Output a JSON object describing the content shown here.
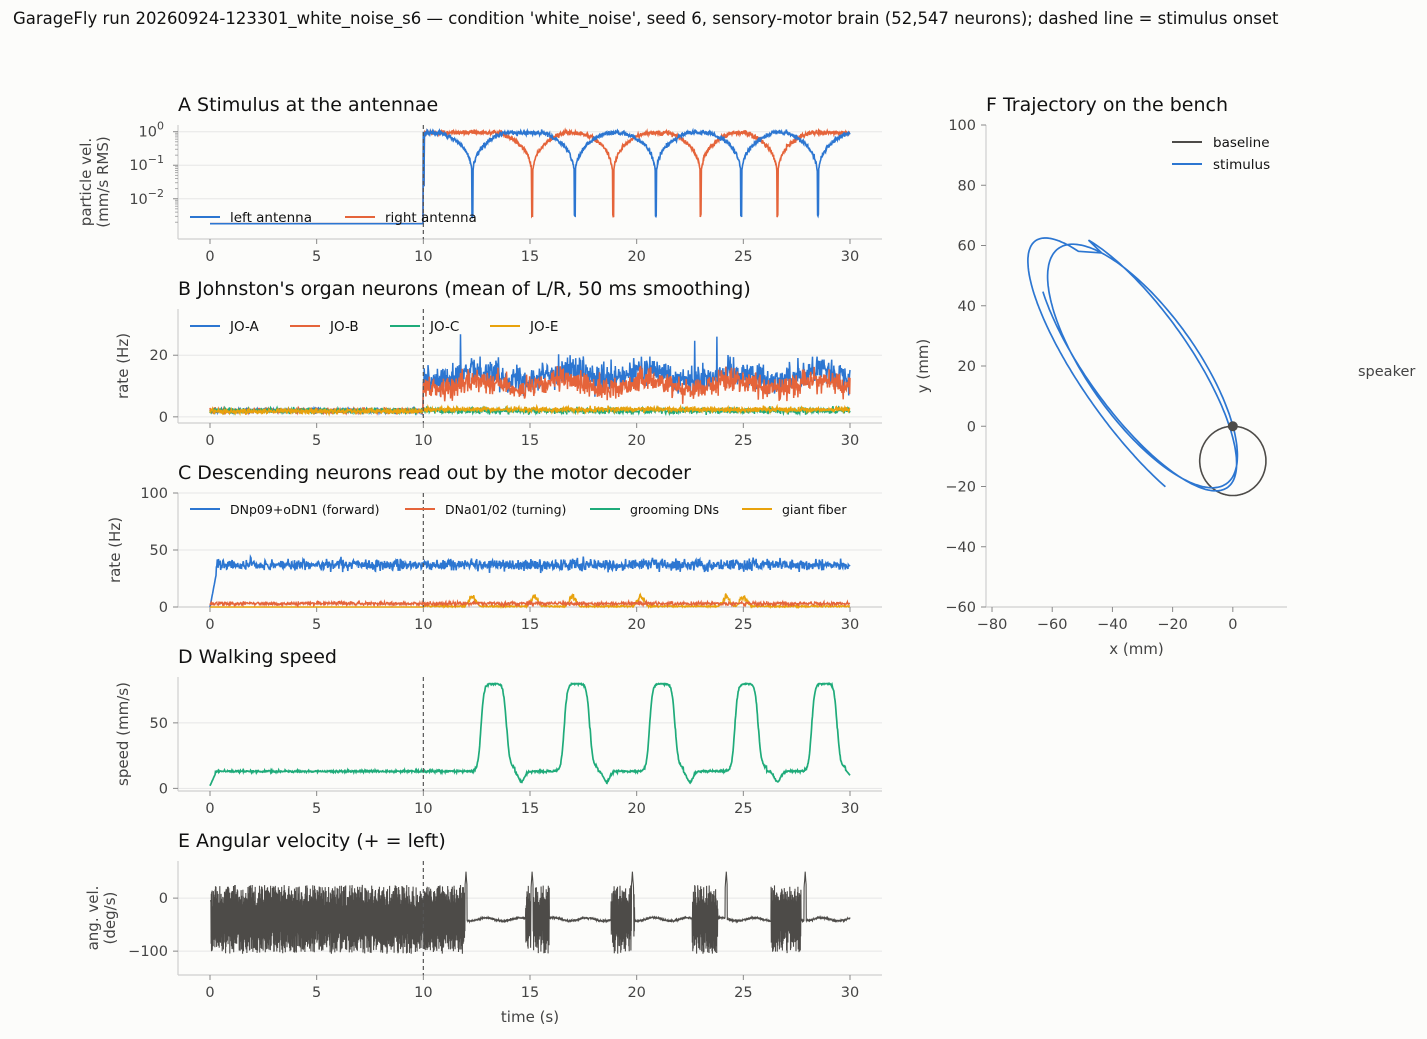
{
  "figure_title": "GarageFly run 20260924-123301_white_noise_s6 — condition 'white_noise', seed 6, sensory-motor brain (52,547 neurons); dashed line = stimulus onset",
  "colors": {
    "blue": "#2c76d1",
    "orange": "#e5643a",
    "green": "#1fab7a",
    "gold": "#e8a20c",
    "gray": "#4d4b48",
    "grid": "#e6e6e6",
    "axis": "#cfcfcf",
    "onset": "#555555"
  },
  "chart_data": [
    {
      "id": "A",
      "type": "line",
      "title": "A  Stimulus at the antennae",
      "xlabel": "",
      "ylabel": [
        "particle vel.",
        "(mm/s RMS)"
      ],
      "yscale": "log",
      "xlim": [
        -1.5,
        31.5
      ],
      "ylim_log10": [
        -3.2,
        0.2
      ],
      "xticks": [
        0,
        5,
        10,
        15,
        20,
        25,
        30
      ],
      "yticks": [
        {
          "v": 1,
          "base": "10",
          "exp": "0"
        },
        {
          "v": 0.1,
          "base": "10",
          "exp": "−1"
        },
        {
          "v": 0.01,
          "base": "10",
          "exp": "−2"
        }
      ],
      "onset": 10,
      "legend": "lower-left",
      "series": [
        {
          "name": "left antenna",
          "color": "#2c76d1",
          "baseline": 0.0018,
          "envelope": "abs_sin",
          "period": 4.2,
          "phase": 0.34,
          "level": 1.0
        },
        {
          "name": "right antenna",
          "color": "#e5643a",
          "baseline": 0.0018,
          "envelope": "abs_sin",
          "period": 3.8,
          "phase": 0.0,
          "level": 1.0
        }
      ],
      "notches": {
        "left antenna": [
          12.3,
          17.1,
          20.9,
          24.9,
          28.5
        ],
        "right antenna": [
          15.1,
          18.9,
          23.0,
          26.6
        ]
      }
    },
    {
      "id": "B",
      "type": "line",
      "title": "B  Johnston's organ neurons (mean of L/R, 50 ms smoothing)",
      "xlabel": "",
      "ylabel": [
        "rate (Hz)"
      ],
      "xlim": [
        -1.5,
        31.5
      ],
      "ylim": [
        -2,
        35
      ],
      "xticks": [
        0,
        5,
        10,
        15,
        20,
        25,
        30
      ],
      "yticks": [
        0,
        20
      ],
      "onset": 10,
      "legend": "upper-left",
      "series": [
        {
          "name": "JO-A",
          "color": "#2c76d1",
          "pre_mean": 2.0,
          "post_mean": 13.5,
          "noise": 3.2
        },
        {
          "name": "JO-B",
          "color": "#e5643a",
          "pre_mean": 2.0,
          "post_mean": 10.5,
          "noise": 2.6
        },
        {
          "name": "JO-C",
          "color": "#1fab7a",
          "pre_mean": 2.0,
          "post_mean": 2.0,
          "noise": 0.7
        },
        {
          "name": "JO-E",
          "color": "#e8a20c",
          "pre_mean": 1.8,
          "post_mean": 2.4,
          "noise": 0.6
        }
      ]
    },
    {
      "id": "C",
      "type": "line",
      "title": "C  Descending neurons read out by the motor decoder",
      "xlabel": "",
      "ylabel": [
        "rate (Hz)"
      ],
      "xlim": [
        -1.5,
        31.5
      ],
      "ylim": [
        0,
        100
      ],
      "xticks": [
        0,
        5,
        10,
        15,
        20,
        25,
        30
      ],
      "yticks": [
        0,
        50,
        100
      ],
      "onset": 10,
      "legend": "upper-left",
      "series": [
        {
          "name": "DNp09+oDN1 (forward)",
          "color": "#2c76d1",
          "mean": 37,
          "noise": 3.5
        },
        {
          "name": "DNa01/02 (turning)",
          "color": "#e5643a",
          "mean": 3,
          "noise": 1.2
        },
        {
          "name": "grooming DNs",
          "color": "#1fab7a",
          "mean": 0,
          "noise": 0
        },
        {
          "name": "giant fiber",
          "color": "#e8a20c",
          "mean": 0,
          "bursts": [
            12.3,
            15.2,
            17.0,
            20.2,
            24.2,
            25.0
          ]
        }
      ]
    },
    {
      "id": "D",
      "type": "line",
      "title": "D  Walking speed",
      "xlabel": "",
      "ylabel": [
        "speed (mm/s)"
      ],
      "xlim": [
        -1.5,
        31.5
      ],
      "ylim": [
        -2,
        85
      ],
      "xticks": [
        0,
        5,
        10,
        15,
        20,
        25,
        30
      ],
      "yticks": [
        0,
        50
      ],
      "onset": 10,
      "legend": "none",
      "series": [
        {
          "name": "",
          "color": "#1fab7a",
          "baseline": 13,
          "plateau": 80,
          "pulses": [
            [
              12.7,
              13.9
            ],
            [
              16.6,
              17.8
            ],
            [
              20.6,
              21.8
            ],
            [
              24.6,
              25.7
            ],
            [
              28.2,
              29.4
            ]
          ],
          "dips": [
            14.6,
            18.6,
            22.5,
            26.6
          ]
        }
      ]
    },
    {
      "id": "E",
      "type": "line",
      "title": "E  Angular velocity (+ = left)",
      "xlabel": "time (s)",
      "ylabel": [
        "ang. vel.",
        "(deg/s)"
      ],
      "xlim": [
        -1.5,
        31.5
      ],
      "ylim": [
        -145,
        70
      ],
      "xticks": [
        0,
        5,
        10,
        15,
        20,
        25,
        30
      ],
      "yticks": [
        0,
        -100
      ],
      "ytick_labels": [
        "0",
        "−100"
      ],
      "onset": 10,
      "legend": "none",
      "series": [
        {
          "name": "",
          "color": "#4d4b48",
          "mean": -40,
          "amp": 45,
          "bursts": [
            [
              14.8,
              15.9
            ],
            [
              18.8,
              19.9
            ],
            [
              22.6,
              23.8
            ],
            [
              26.3,
              27.7
            ]
          ],
          "spikes": [
            12.0,
            15.1,
            19.8,
            24.2,
            27.9
          ],
          "dense_until": 12.0
        }
      ]
    },
    {
      "id": "F",
      "type": "line",
      "title": "F  Trajectory on the bench",
      "xlabel": "x (mm)",
      "ylabel": [
        "y (mm)"
      ],
      "xlim": [
        -82,
        18
      ],
      "ylim": [
        -60,
        100
      ],
      "xticks": [
        -80,
        -60,
        -40,
        -20,
        0
      ],
      "xtick_labels": [
        "−80",
        "−60",
        "−40",
        "−20",
        "0"
      ],
      "yticks": [
        -60,
        -40,
        -20,
        0,
        20,
        40,
        60,
        80,
        100
      ],
      "ytick_labels": [
        "−60",
        "−40",
        "−20",
        "0",
        "20",
        "40",
        "60",
        "80",
        "100"
      ],
      "legend": "upper-right",
      "annotation": "speaker",
      "start_point": [
        0,
        0
      ],
      "series": [
        {
          "name": "baseline",
          "color": "#4d4b48"
        },
        {
          "name": "stimulus",
          "color": "#2c76d1"
        }
      ]
    }
  ]
}
